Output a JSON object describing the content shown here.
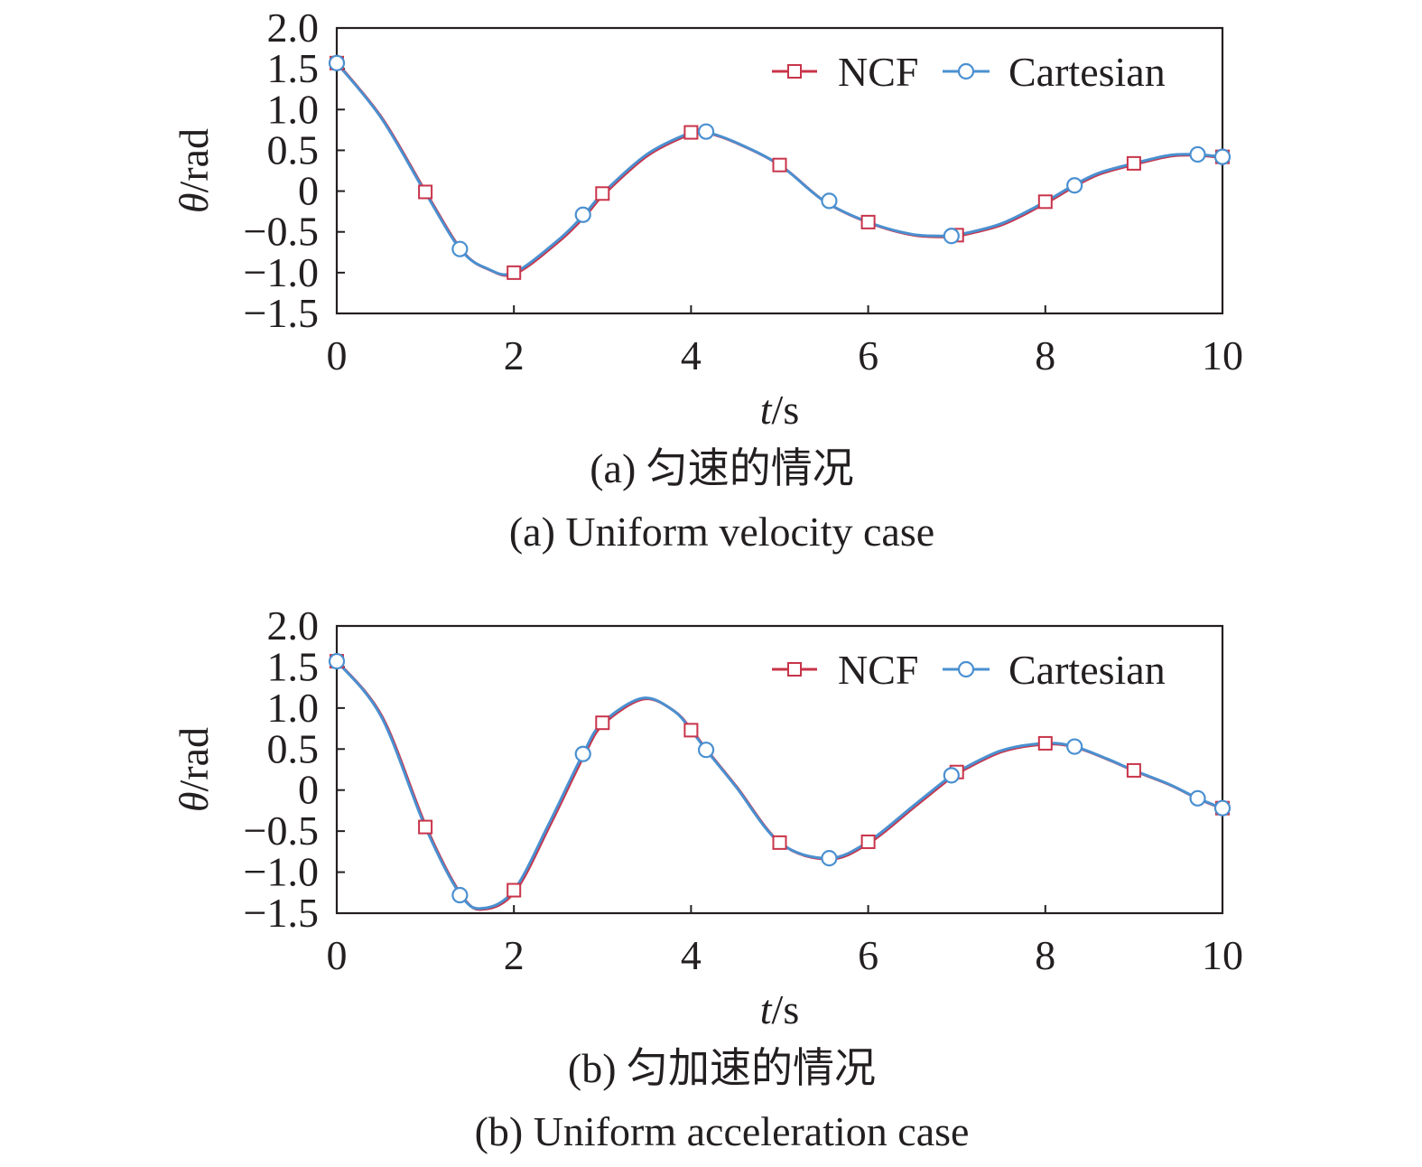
{
  "captions": {
    "a_zh": "(a) 匀速的情况",
    "a_en": "(a) Uniform velocity case",
    "b_zh": "(b) 匀加速的情况",
    "b_en": "(b) Uniform acceleration case"
  },
  "colors": {
    "ncf": "#c8344a",
    "cartesian": "#4a90d0",
    "axis": "#231f20"
  },
  "chart_data": [
    {
      "type": "line",
      "xlabel": "t/s",
      "ylabel": "θ/rad",
      "xlim": [
        0,
        10
      ],
      "ylim": [
        -1.5,
        2.0
      ],
      "xticks": [
        0,
        2,
        4,
        6,
        8,
        10
      ],
      "yticks": [
        -1.5,
        -1.0,
        -0.5,
        0,
        0.5,
        1.0,
        1.5,
        2.0
      ],
      "ytick_labels": [
        "−1.5",
        "−1.0",
        "−0.5",
        "0",
        "0.5",
        "1.0",
        "1.5",
        "2.0"
      ],
      "grid": false,
      "legend_position": "top-right",
      "curve": {
        "x": [
          0,
          0.5,
          1.0,
          1.4,
          1.7,
          2.0,
          2.5,
          2.8,
          3.0,
          3.5,
          4.0,
          4.15,
          4.5,
          5.0,
          5.5,
          6.0,
          6.5,
          6.9,
          7.0,
          7.5,
          8.0,
          8.3,
          8.6,
          9.0,
          9.4,
          9.7,
          10.0
        ],
        "y": [
          1.57,
          0.9,
          -0.02,
          -0.72,
          -0.95,
          -1.0,
          -0.6,
          -0.28,
          -0.03,
          0.45,
          0.72,
          0.73,
          0.6,
          0.32,
          -0.12,
          -0.38,
          -0.53,
          -0.55,
          -0.54,
          -0.4,
          -0.13,
          0.06,
          0.22,
          0.34,
          0.44,
          0.45,
          0.42
        ]
      },
      "series": [
        {
          "name": "NCF",
          "marker": "square",
          "x": [
            0,
            1,
            2,
            3,
            4,
            5,
            6,
            7,
            8,
            9,
            10
          ],
          "y": [
            1.57,
            -0.01,
            -1.0,
            -0.03,
            0.72,
            0.32,
            -0.38,
            -0.54,
            -0.13,
            0.34,
            0.42
          ]
        },
        {
          "name": "Cartesian",
          "marker": "circle",
          "x": [
            0,
            1.39,
            2.78,
            4.17,
            5.56,
            6.94,
            8.33,
            9.72,
            10
          ],
          "y": [
            1.57,
            -0.71,
            -0.29,
            0.73,
            -0.12,
            -0.55,
            0.07,
            0.45,
            0.42
          ]
        }
      ]
    },
    {
      "type": "line",
      "xlabel": "t/s",
      "ylabel": "θ/rad",
      "xlim": [
        0,
        10
      ],
      "ylim": [
        -1.5,
        2.0
      ],
      "xticks": [
        0,
        2,
        4,
        6,
        8,
        10
      ],
      "yticks": [
        -1.5,
        -1.0,
        -0.5,
        0,
        0.5,
        1.0,
        1.5,
        2.0
      ],
      "ytick_labels": [
        "−1.5",
        "−1.0",
        "−0.5",
        "0",
        "0.5",
        "1.0",
        "1.5",
        "2.0"
      ],
      "grid": false,
      "legend_position": "top-right",
      "curve": {
        "x": [
          0,
          0.5,
          1.0,
          1.4,
          1.65,
          2.0,
          2.4,
          2.78,
          3.0,
          3.45,
          3.8,
          4.0,
          4.17,
          4.5,
          5.0,
          5.55,
          6.0,
          6.5,
          6.94,
          7.0,
          7.5,
          8.0,
          8.33,
          8.7,
          9.0,
          9.4,
          9.72,
          10.0
        ],
        "y": [
          1.57,
          0.9,
          -0.45,
          -1.28,
          -1.44,
          -1.22,
          -0.4,
          0.44,
          0.82,
          1.12,
          0.97,
          0.73,
          0.49,
          0.05,
          -0.64,
          -0.83,
          -0.63,
          -0.2,
          0.18,
          0.22,
          0.48,
          0.57,
          0.53,
          0.38,
          0.24,
          0.07,
          -0.1,
          -0.22
        ]
      },
      "series": [
        {
          "name": "NCF",
          "marker": "square",
          "x": [
            0,
            1,
            2,
            3,
            4,
            5,
            6,
            7,
            8,
            9,
            10
          ],
          "y": [
            1.57,
            -0.45,
            -1.22,
            0.82,
            0.73,
            -0.64,
            -0.63,
            0.22,
            0.57,
            0.24,
            -0.22
          ]
        },
        {
          "name": "Cartesian",
          "marker": "circle",
          "x": [
            0,
            1.39,
            2.78,
            4.17,
            5.56,
            6.94,
            8.33,
            9.72,
            10
          ],
          "y": [
            1.57,
            -1.28,
            0.44,
            0.49,
            -0.83,
            0.18,
            0.53,
            -0.1,
            -0.22
          ]
        }
      ]
    }
  ]
}
